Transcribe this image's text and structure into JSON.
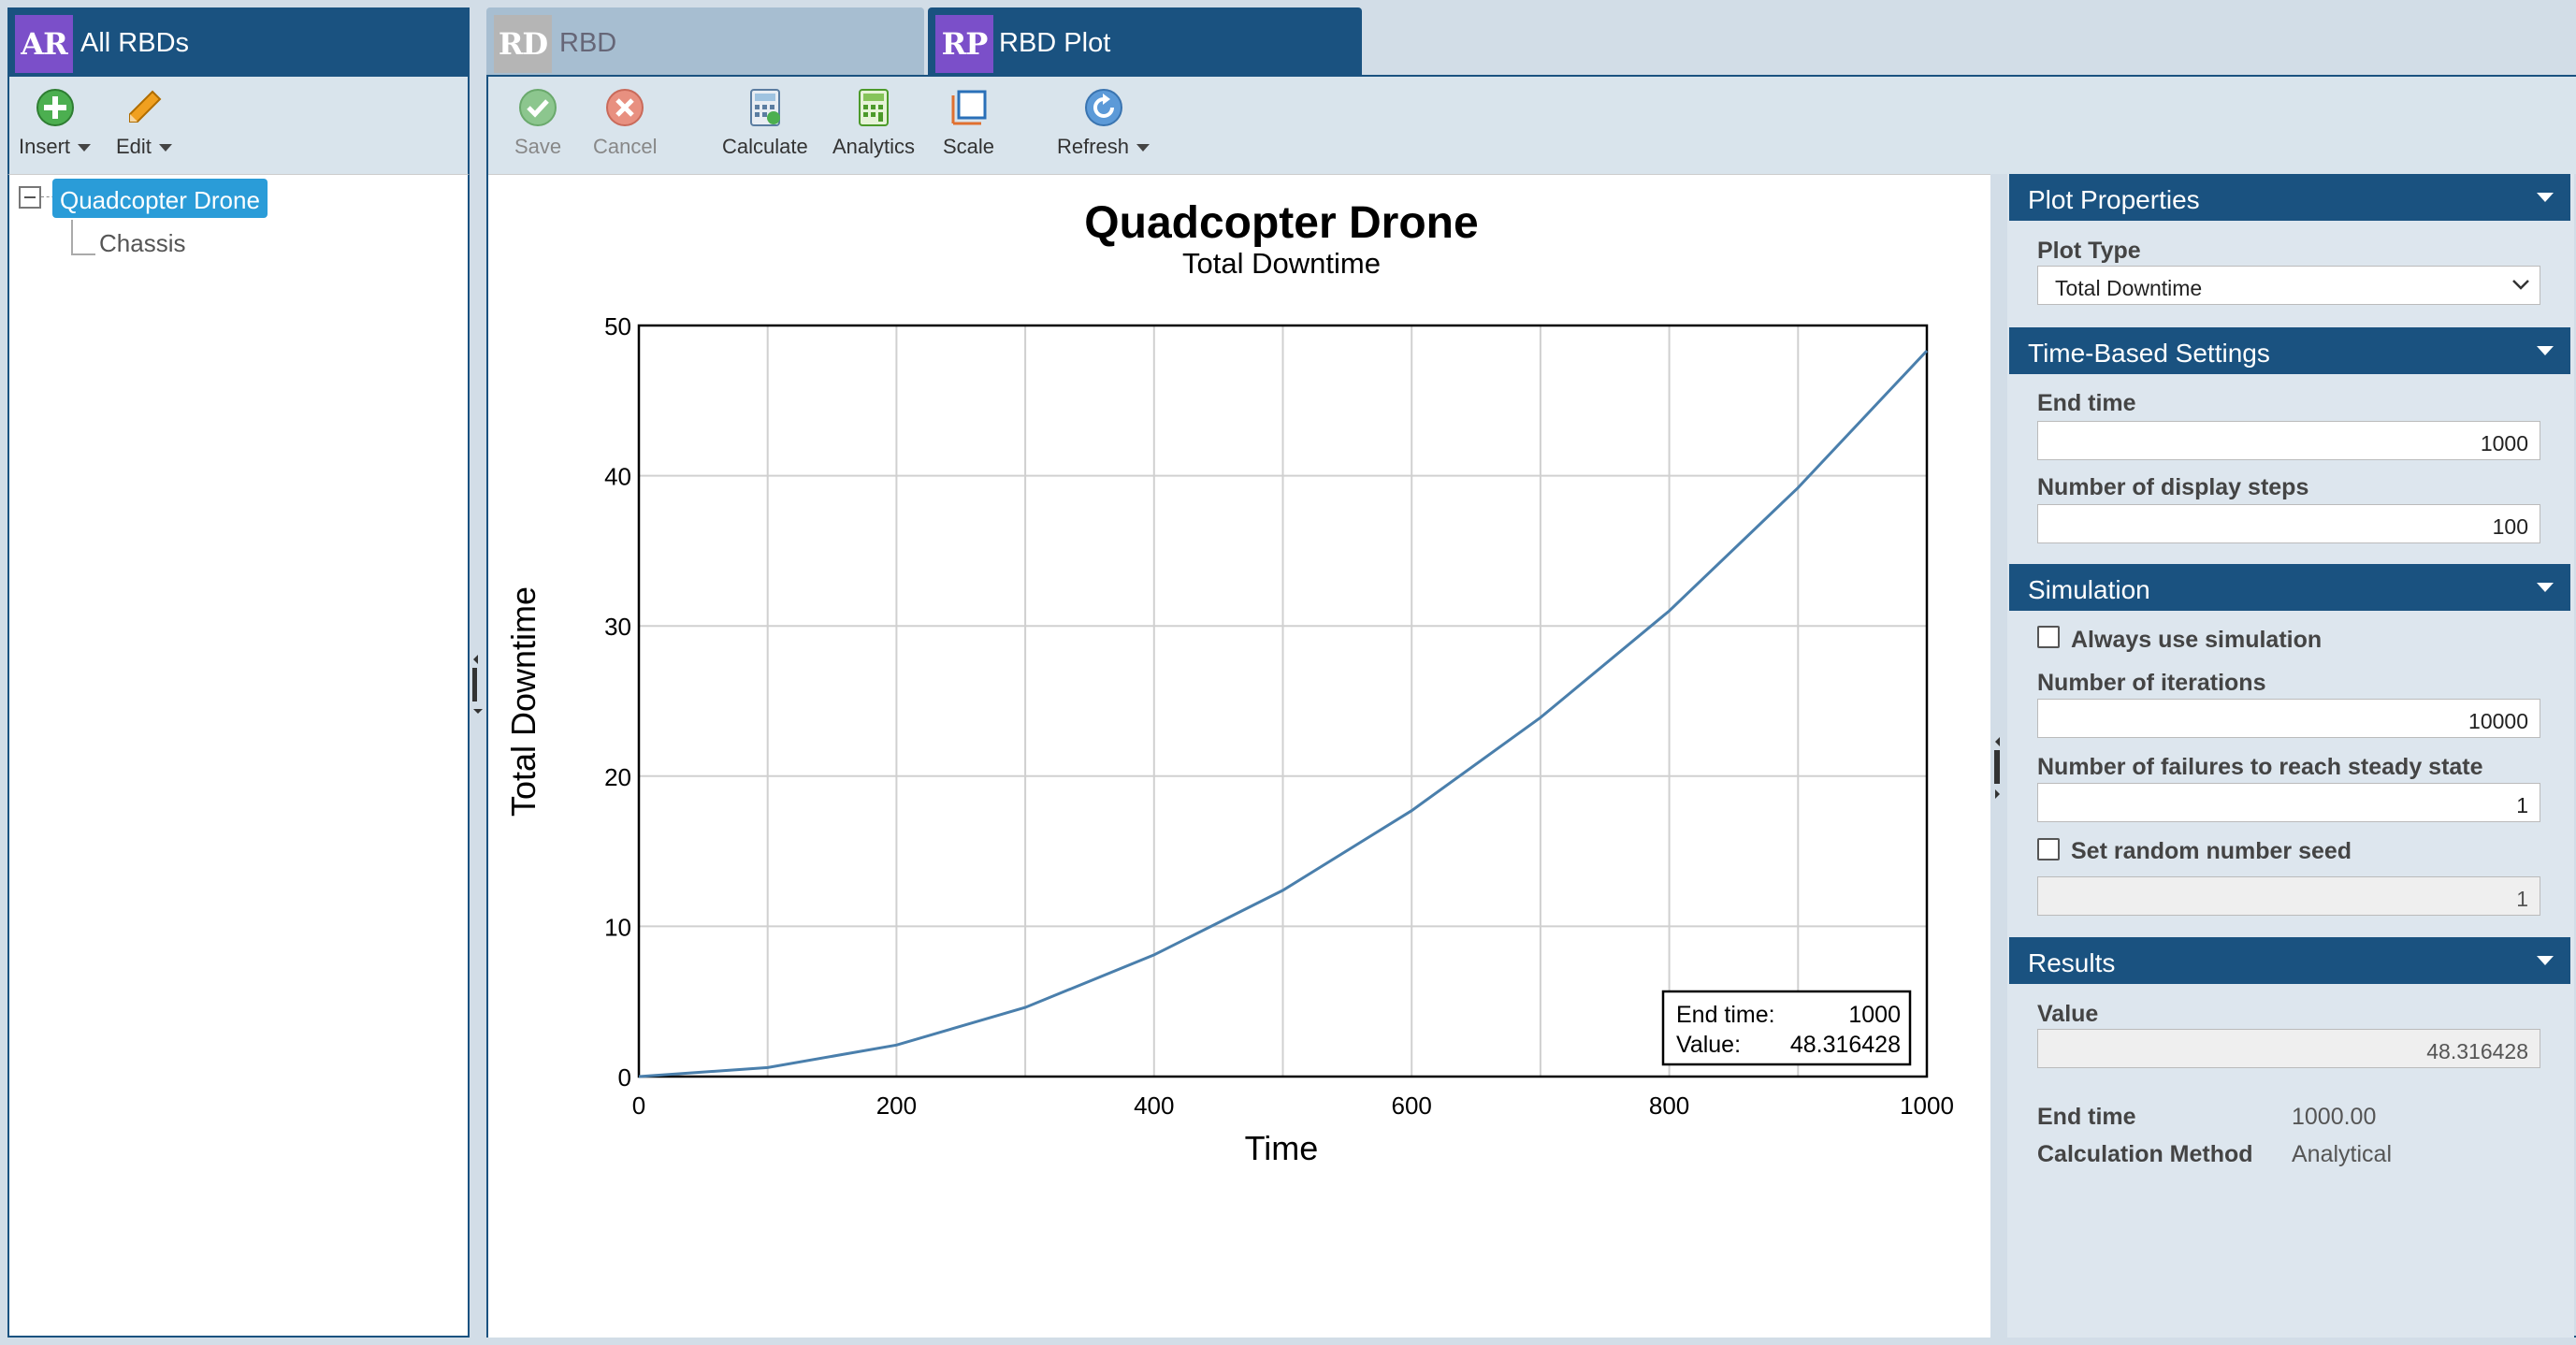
{
  "left_panel": {
    "badge": "AR",
    "title": "All RBDs",
    "toolbar": {
      "insert": "Insert",
      "edit": "Edit"
    },
    "tree": {
      "root": "Quadcopter Drone",
      "child": "Chassis"
    }
  },
  "tabs": [
    {
      "badge": "RD",
      "label": "RBD"
    },
    {
      "badge": "RP",
      "label": "RBD Plot"
    }
  ],
  "toolbar": {
    "save": "Save",
    "cancel": "Cancel",
    "calculate": "Calculate",
    "analytics": "Analytics",
    "scale": "Scale",
    "refresh": "Refresh"
  },
  "chart_data": {
    "type": "line",
    "title": "Quadcopter Drone",
    "subtitle": "Total Downtime",
    "xlabel": "Time",
    "ylabel": "Total Downtime",
    "xlim": [
      0,
      1000
    ],
    "ylim": [
      0,
      50
    ],
    "xticks": [
      "0",
      "200",
      "400",
      "600",
      "800",
      "1000"
    ],
    "yticks": [
      "0",
      "10",
      "20",
      "30",
      "40",
      "50"
    ],
    "grid": true,
    "series": [
      {
        "color": "#4a7fac",
        "x": [
          0,
          100,
          200,
          300,
          400,
          500,
          600,
          700,
          800,
          900,
          1000
        ],
        "y": [
          0,
          0.6,
          2.1,
          4.6,
          8.1,
          12.4,
          17.7,
          23.9,
          31.0,
          39.2,
          48.316428
        ]
      }
    ],
    "annotation": {
      "end_time_label": "End time:",
      "end_time": "1000",
      "value_label": "Value:",
      "value": "48.316428"
    }
  },
  "props": {
    "plot_properties": {
      "title": "Plot Properties",
      "plot_type_label": "Plot Type",
      "plot_type": "Total Downtime"
    },
    "time_based": {
      "title": "Time-Based Settings",
      "end_time_label": "End time",
      "end_time": "1000",
      "steps_label": "Number of display steps",
      "steps": "100"
    },
    "simulation": {
      "title": "Simulation",
      "always_sim": "Always use simulation",
      "iterations_label": "Number of iterations",
      "iterations": "10000",
      "failures_label": "Number of failures to reach steady state",
      "failures": "1",
      "seed_label": "Set random number seed",
      "seed": "1"
    },
    "results": {
      "title": "Results",
      "value_label": "Value",
      "value": "48.316428",
      "end_time_label": "End time",
      "end_time": "1000.00",
      "method_label": "Calculation Method",
      "method": "Analytical"
    }
  },
  "colors": {
    "header": "#1a5280",
    "accent": "#2a9cd8",
    "badge": "#7b4fc9",
    "line": "#4a7fac"
  }
}
